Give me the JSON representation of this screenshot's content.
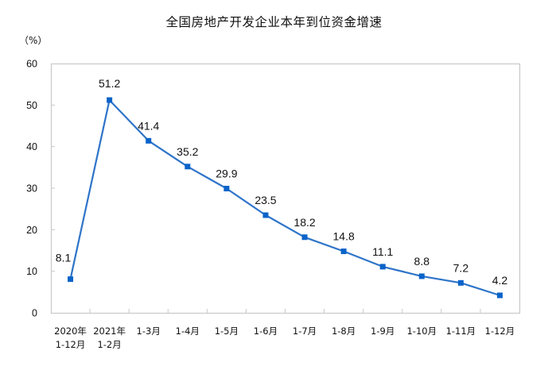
{
  "title": "全国房地产开发企业本年到位资金增速",
  "unit_label": "（%）",
  "colors": {
    "line": "#2e74c9",
    "marker": "#0a63c9",
    "axis": "#c8c8c8"
  },
  "chart_data": {
    "type": "line",
    "title": "全国房地产开发企业本年到位资金增速",
    "xlabel": "",
    "ylabel": "（%）",
    "ylim": [
      0,
      60
    ],
    "yticks": [
      0,
      10,
      20,
      30,
      40,
      50,
      60
    ],
    "grid": false,
    "legend": "none",
    "categories": [
      "2020年 1-12月",
      "2021年 1-2月",
      "1-3月",
      "1-4月",
      "1-5月",
      "1-6月",
      "1-7月",
      "1-8月",
      "1-9月",
      "1-10月",
      "1-11月",
      "1-12月"
    ],
    "category_lines": [
      [
        "2020年",
        "1-12月"
      ],
      [
        "2021年",
        "1-2月"
      ],
      [
        "1-3月"
      ],
      [
        "1-4月"
      ],
      [
        "1-5月"
      ],
      [
        "1-6月"
      ],
      [
        "1-7月"
      ],
      [
        "1-8月"
      ],
      [
        "1-9月"
      ],
      [
        "1-10月"
      ],
      [
        "1-11月"
      ],
      [
        "1-12月"
      ]
    ],
    "series": [
      {
        "name": "本年到位资金增速",
        "values": [
          8.1,
          51.2,
          41.4,
          35.2,
          29.9,
          23.5,
          18.2,
          14.8,
          11.1,
          8.8,
          7.2,
          4.2
        ],
        "labels": [
          "8.1",
          "51.2",
          "41.4",
          "35.2",
          "29.9",
          "23.5",
          "18.2",
          "14.8",
          "11.1",
          "8.8",
          "7.2",
          "4.2"
        ]
      }
    ]
  }
}
